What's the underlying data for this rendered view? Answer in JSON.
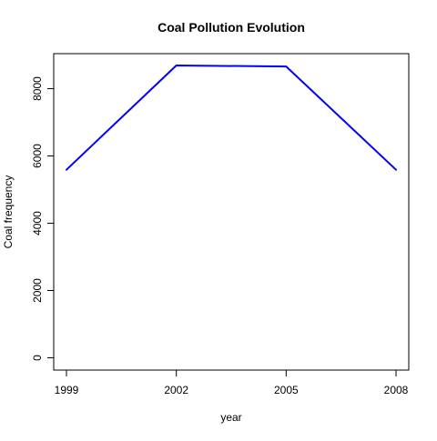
{
  "chart_data": {
    "type": "line",
    "title": "Coal Pollution Evolution",
    "xlabel": "year",
    "ylabel": "Coal frequency",
    "x": [
      1999,
      2002,
      2005,
      2008
    ],
    "series": [
      {
        "values": [
          5590,
          8690,
          8660,
          5590
        ],
        "color": "#0000ff"
      }
    ],
    "x_ticks": [
      1999,
      2002,
      2005,
      2008
    ],
    "y_ticks": [
      0,
      2000,
      4000,
      6000,
      8000
    ],
    "y_tick_labels": [
      "0",
      "2000",
      "4000",
      "6000",
      "8000"
    ],
    "xlim": [
      1999,
      2008
    ],
    "ylim": [
      0,
      8690
    ],
    "grid": false,
    "legend": "none"
  }
}
